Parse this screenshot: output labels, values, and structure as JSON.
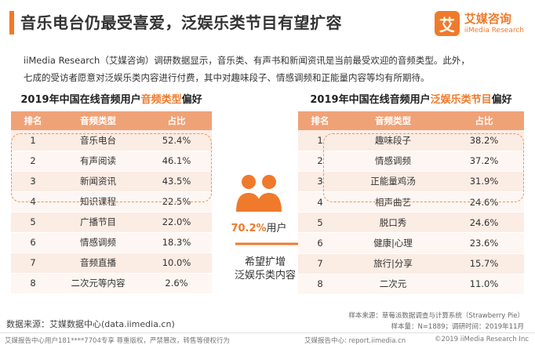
{
  "header": {
    "title": "音乐电台仍最受喜爱，泛娱乐类节目有望扩容"
  },
  "logo": {
    "mark": "艾",
    "cn": "艾媒咨询",
    "en": "iiMedia Research"
  },
  "intro": {
    "line1": "iiMedia Research（艾媒咨询）调研数据显示，音乐类、有声书和新闻资讯是当前最受欢迎的音频类型。此外，",
    "line2": "七成的受访者愿意对泛娱乐类内容进行付费，其中对趣味段子、情感调频和正能量内容等均有所期待。"
  },
  "left_table": {
    "title_prefix": "2019年中国在线音频用户",
    "title_highlight": "音频类型",
    "title_suffix": "偏好",
    "headers": [
      "排名",
      "音频类型",
      "占比"
    ],
    "rows": [
      {
        "rank": "1",
        "type": "音乐电台",
        "pct": "52.4%"
      },
      {
        "rank": "2",
        "type": "有声阅读",
        "pct": "46.1%"
      },
      {
        "rank": "3",
        "type": "新闻资讯",
        "pct": "43.5%"
      },
      {
        "rank": "4",
        "type": "知识课程",
        "pct": "22.5%"
      },
      {
        "rank": "5",
        "type": "广播节目",
        "pct": "22.0%"
      },
      {
        "rank": "6",
        "type": "情感调频",
        "pct": "18.3%"
      },
      {
        "rank": "7",
        "type": "音频直播",
        "pct": "10.0%"
      },
      {
        "rank": "8",
        "type": "二次元等内容",
        "pct": "2.6%"
      }
    ]
  },
  "right_table": {
    "title_prefix": "2019年中国在线音频用户",
    "title_highlight": "泛娱乐类节目",
    "title_suffix": "偏好",
    "headers": [
      "排名",
      "音频类型",
      "占比"
    ],
    "rows": [
      {
        "rank": "1",
        "type": "趣味段子",
        "pct": "38.2%"
      },
      {
        "rank": "2",
        "type": "情感调频",
        "pct": "37.2%"
      },
      {
        "rank": "3",
        "type": "正能量鸡汤",
        "pct": "31.9%"
      },
      {
        "rank": "4",
        "type": "相声曲艺",
        "pct": "24.6%"
      },
      {
        "rank": "5",
        "type": "脱口秀",
        "pct": "24.6%"
      },
      {
        "rank": "6",
        "type": "健康|心理",
        "pct": "23.6%"
      },
      {
        "rank": "7",
        "type": "旅行|分享",
        "pct": "15.7%"
      },
      {
        "rank": "8",
        "type": "二次元",
        "pct": "11.0%"
      }
    ]
  },
  "center": {
    "pct": "70.2%",
    "pct_suffix": "用户",
    "wish_line1": "希望扩增",
    "wish_line2": "泛娱乐类内容"
  },
  "notes": {
    "sample_source": "样本来源：草莓派数据调查与计算系统（Strawberry Pie）",
    "sample_size": "样本量：N=1889；调研时间：2019年11月"
  },
  "source": "数据来源：艾媒数据中心(data.iimedia.cn)",
  "footer": {
    "left": "艾媒报告中心用户181****7704专享 尊重版权，严禁篡改，转售等侵权行为",
    "middle": "艾媒报告中心: report.iimedia.cn",
    "right": "©2019  iiMedia Research  Inc"
  },
  "colors": {
    "accent": "#f07a2b",
    "header_bg": "#f0a277",
    "row_odd": "#fbece4",
    "row_even": "#fdf6f2"
  }
}
